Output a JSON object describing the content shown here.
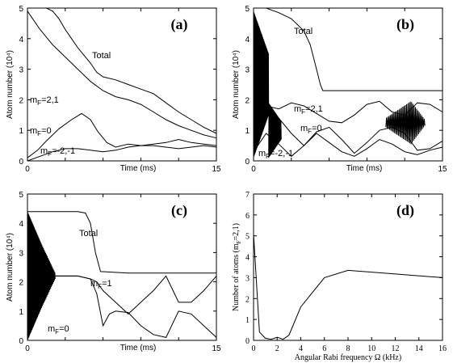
{
  "chart_data": [
    {
      "panel": "(a)",
      "type": "line",
      "xlabel": "Time (ms)",
      "ylabel": "Atom number (10⁴)",
      "xlim": [
        0,
        15
      ],
      "ylim": [
        0,
        5
      ],
      "xticks": [
        0,
        15
      ],
      "yticks": [
        0,
        1,
        2,
        3,
        4,
        5
      ],
      "series": [
        {
          "name": "Total",
          "x": [
            0,
            1,
            1.5,
            2,
            2.5,
            3,
            3.5,
            4,
            4.5,
            5,
            5.5,
            6,
            7,
            8,
            9,
            10,
            11,
            12,
            13,
            14,
            15
          ],
          "y": [
            5,
            5,
            5,
            4.9,
            4.65,
            4.3,
            4.0,
            3.7,
            3.45,
            3.2,
            2.9,
            2.75,
            2.65,
            2.5,
            2.35,
            2.2,
            1.9,
            1.6,
            1.35,
            1.1,
            0.9
          ]
        },
        {
          "name": "mF=2,1",
          "x": [
            0,
            1,
            2,
            3,
            4,
            5,
            6,
            7,
            8,
            9,
            10,
            11,
            12,
            13,
            14,
            15
          ],
          "y": [
            4.9,
            4.3,
            3.8,
            3.4,
            3.0,
            2.6,
            2.3,
            2.1,
            2.0,
            1.85,
            1.6,
            1.35,
            1.15,
            1.0,
            0.85,
            0.75
          ]
        },
        {
          "name": "mF=0",
          "x": [
            0,
            0.8,
            1.5,
            2.5,
            3.5,
            4.3,
            5.0,
            5.6,
            6.3,
            7,
            8,
            9,
            10,
            11,
            12,
            13,
            14,
            15
          ],
          "y": [
            0.1,
            0.35,
            0.65,
            1.05,
            1.35,
            1.55,
            1.35,
            0.95,
            0.6,
            0.45,
            0.55,
            0.5,
            0.55,
            0.6,
            0.7,
            0.6,
            0.55,
            0.5
          ]
        },
        {
          "name": "mF=-2,-1",
          "x": [
            0,
            1,
            2,
            3,
            4,
            5,
            6,
            7,
            8,
            9,
            10,
            11,
            12,
            13,
            14,
            15
          ],
          "y": [
            0,
            0.15,
            0.3,
            0.4,
            0.4,
            0.35,
            0.3,
            0.35,
            0.45,
            0.5,
            0.5,
            0.45,
            0.4,
            0.45,
            0.5,
            0.45
          ]
        }
      ],
      "annotations": [
        "Total",
        "m",
        "F",
        "=2,1",
        "m",
        "F",
        "=0",
        "m",
        "F",
        "=-2,-1"
      ]
    },
    {
      "panel": "(b)",
      "type": "line",
      "xlabel": "Time (ms)",
      "ylabel": "Atom number (10⁴)",
      "xlim": [
        0,
        15
      ],
      "ylim": [
        0,
        5
      ],
      "xticks": [
        0,
        15
      ],
      "yticks": [
        0,
        1,
        2,
        3,
        4,
        5
      ],
      "series": [
        {
          "name": "Total",
          "x": [
            0,
            1,
            2,
            3,
            4,
            4.5,
            5,
            5.3,
            5.5,
            6,
            8,
            10,
            12,
            15
          ],
          "y": [
            5,
            5,
            4.85,
            4.65,
            4.25,
            3.8,
            3.0,
            2.5,
            2.3,
            2.3,
            2.3,
            2.3,
            2.3,
            2.3
          ]
        },
        {
          "name": "mF=2,1",
          "x": [
            0,
            1,
            2,
            3,
            4,
            5,
            6,
            7,
            8,
            9,
            10,
            11,
            12,
            13,
            14,
            15
          ],
          "y": [
            2.6,
            1.8,
            1.7,
            1.9,
            1.8,
            1.55,
            1.3,
            1.25,
            1.5,
            1.85,
            1.95,
            1.6,
            1.5,
            1.9,
            1.85,
            1.6
          ]
        },
        {
          "name": "mF=0",
          "x": [
            0,
            1,
            2,
            3,
            4,
            5,
            6,
            7,
            8,
            9,
            10,
            11,
            12,
            13,
            14,
            15
          ],
          "y": [
            2.0,
            1.7,
            1.4,
            0.9,
            0.5,
            0.95,
            1.1,
            0.7,
            0.25,
            0.6,
            1.0,
            1.1,
            0.9,
            0.35,
            0.4,
            0.65
          ]
        },
        {
          "name": "mF=-2,-1",
          "x": [
            0,
            1,
            2,
            3,
            4,
            5,
            6,
            7,
            8,
            9,
            10,
            11,
            12,
            13,
            14,
            15
          ],
          "y": [
            0.3,
            0.9,
            0.55,
            0.15,
            0.5,
            0.9,
            0.6,
            0.3,
            0.15,
            0.4,
            0.7,
            0.55,
            0.3,
            0.2,
            0.35,
            0.45
          ]
        }
      ],
      "annotations": [
        "Total",
        "m",
        "F",
        "=2,1",
        "m",
        "F",
        "=0",
        "m",
        "F",
        "=-2,-1"
      ]
    },
    {
      "panel": "(c)",
      "type": "line",
      "xlabel": "Time (ms)",
      "ylabel": "Atom number (10⁴)",
      "xlim": [
        0,
        15
      ],
      "ylim": [
        0,
        5
      ],
      "xticks": [
        0,
        15
      ],
      "yticks": [
        0,
        1,
        2,
        3,
        4,
        5
      ],
      "series": [
        {
          "name": "Total",
          "x": [
            0,
            4,
            4.6,
            5,
            5.4,
            5.8,
            8,
            10,
            12,
            15
          ],
          "y": [
            4.4,
            4.4,
            4.35,
            4.0,
            3.0,
            2.35,
            2.3,
            2.3,
            2.3,
            2.3
          ]
        },
        {
          "name": "mF=1",
          "x": [
            0,
            1,
            2,
            3,
            4,
            5,
            5.5,
            6,
            6.5,
            7,
            8,
            9,
            10,
            11,
            12,
            13,
            14,
            15
          ],
          "y": [
            2.2,
            2.25,
            2.2,
            2.2,
            2.2,
            2.1,
            2.0,
            1.7,
            1.5,
            1.3,
            0.9,
            1.3,
            1.7,
            2.2,
            1.3,
            1.3,
            1.7,
            2.2
          ]
        },
        {
          "name": "mF=0",
          "x": [
            0,
            1,
            2,
            3,
            4,
            5,
            5.5,
            6,
            6.5,
            7,
            8,
            9,
            10,
            11,
            12,
            13,
            14,
            15
          ],
          "y": [
            2.2,
            2.25,
            2.2,
            2.2,
            2.2,
            2.1,
            1.6,
            0.5,
            0.9,
            1.0,
            0.95,
            0.5,
            0.2,
            0.1,
            1.0,
            0.9,
            0.5,
            0.1
          ]
        }
      ],
      "annotations": [
        "Total",
        "m",
        "F",
        "=1",
        "m",
        "F",
        "=0"
      ]
    },
    {
      "panel": "(d)",
      "type": "line",
      "xlabel": "Angular Rabi frequency Ω (kHz)",
      "ylabel": "Number of atoms (m",
      "ylabel_sub": "F",
      "ylabel_tail": "=2,1)",
      "xlim": [
        0,
        16
      ],
      "ylim": [
        0,
        7
      ],
      "xticks": [
        0,
        2,
        4,
        6,
        8,
        10,
        12,
        14,
        16
      ],
      "yticks": [
        0,
        1,
        2,
        3,
        4,
        5,
        6,
        7
      ],
      "series": [
        {
          "name": "",
          "x": [
            0,
            0.5,
            1,
            1.5,
            2,
            2.5,
            3,
            4,
            6,
            8,
            16
          ],
          "y": [
            5.1,
            0.4,
            0.1,
            0.05,
            0.15,
            0.05,
            0.25,
            1.6,
            3.0,
            3.35,
            3.0
          ]
        }
      ]
    }
  ]
}
